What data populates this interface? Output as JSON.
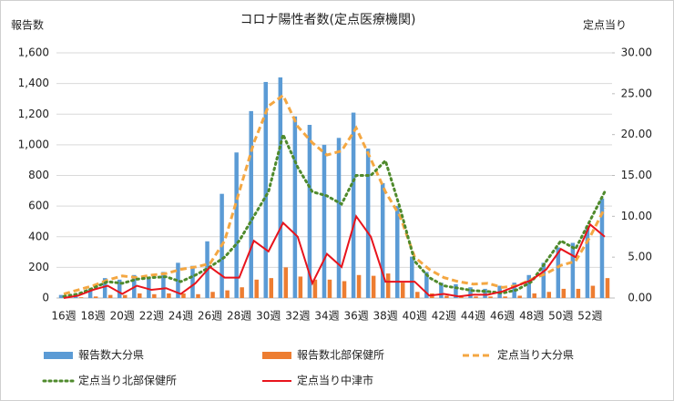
{
  "chart_data": {
    "type": "bar",
    "title": "コロナ陽性者数(定点医療機関)",
    "y_label": "報告数",
    "y2_label": "定点当り",
    "categories": [
      "16週",
      null,
      "18週",
      null,
      "20週",
      null,
      "22週",
      null,
      "24週",
      null,
      "26週",
      null,
      "28週",
      null,
      "30週",
      null,
      "32週",
      null,
      "34週",
      null,
      "36週",
      null,
      "38週",
      null,
      "40週",
      null,
      "42週",
      null,
      "44週",
      null,
      "46週",
      null,
      "48週",
      null,
      "50週",
      null,
      "52週",
      null
    ],
    "ylim": [
      0,
      1600
    ],
    "yticks": [
      0,
      {
        "value": 200,
        "label": "200"
      },
      400,
      600,
      800,
      {
        "value": 1000,
        "label": "1,000"
      },
      {
        "value": 1200,
        "label": "1,200"
      },
      {
        "value": 1400,
        "label": "1,400"
      },
      {
        "value": 1600,
        "label": "1,600"
      }
    ],
    "y2lim": [
      0,
      30
    ],
    "y2ticks": [
      {
        "value": 0,
        "label": "0.00"
      },
      {
        "value": 5,
        "label": "5.00"
      },
      {
        "value": 10,
        "label": "10.00"
      },
      {
        "value": 15,
        "label": "15.00"
      },
      {
        "value": 20,
        "label": "20.00"
      },
      {
        "value": 25,
        "label": "25.00"
      },
      {
        "value": 30,
        "label": "30.00"
      }
    ],
    "grid": true,
    "legend": "bottom",
    "series": [
      {
        "name": "報告数大分県",
        "type": "bar",
        "color": "#5b9bd5",
        "values": [
          20,
          30,
          60,
          130,
          120,
          150,
          130,
          170,
          230,
          210,
          370,
          680,
          950,
          1220,
          1410,
          1440,
          1185,
          1130,
          1000,
          1045,
          1210,
          975,
          750,
          600,
          270,
          170,
          100,
          90,
          70,
          60,
          80,
          100,
          150,
          230,
          330,
          360,
          470,
          650
        ]
      },
      {
        "name": "報告数北部保健所",
        "type": "bar",
        "color": "#ed7d31",
        "values": [
          5,
          5,
          10,
          20,
          20,
          30,
          25,
          30,
          30,
          25,
          40,
          50,
          70,
          120,
          130,
          200,
          140,
          120,
          120,
          110,
          150,
          145,
          160,
          100,
          40,
          30,
          15,
          15,
          10,
          10,
          10,
          15,
          30,
          40,
          60,
          60,
          80,
          130
        ]
      },
      {
        "name": "定点当り大分県",
        "type": "line",
        "axis": "y2",
        "style": "dashed",
        "color": "#f4a742",
        "values": [
          0.5,
          1.0,
          1.5,
          2.2,
          2.7,
          2.5,
          2.8,
          3.0,
          3.5,
          3.8,
          4.2,
          7.0,
          13,
          19,
          23.5,
          24.8,
          21,
          19,
          17.5,
          18,
          20.8,
          17,
          13,
          10,
          5,
          3.5,
          2.5,
          2,
          1.7,
          1.8,
          1.3,
          1.5,
          2.3,
          3,
          4,
          4.5,
          7.5,
          11
        ]
      },
      {
        "name": "定点当り北部保健所",
        "type": "line",
        "axis": "y2",
        "style": "dotted",
        "color": "#4f8a2c",
        "values": [
          0.2,
          0.5,
          1.2,
          2.0,
          1.8,
          2.3,
          2.5,
          2.6,
          2.0,
          2.8,
          3.8,
          5,
          7,
          10,
          13,
          20,
          16,
          13,
          12.5,
          11.5,
          15,
          15,
          16.8,
          11,
          4.5,
          2.5,
          1.5,
          1.2,
          0.9,
          0.8,
          0.6,
          1.0,
          2.0,
          4.5,
          7,
          6,
          9.5,
          13
        ]
      },
      {
        "name": "定点当り中津市",
        "type": "line",
        "axis": "y2",
        "style": "solid",
        "color": "#e8141c",
        "values": [
          0,
          0.3,
          1,
          1.5,
          0.5,
          1.5,
          1,
          1.2,
          0.5,
          1.8,
          3.8,
          2.5,
          2.5,
          7,
          5.7,
          9.2,
          7.5,
          1.8,
          5.4,
          3.8,
          10,
          7.5,
          2,
          2,
          2,
          0.3,
          0.5,
          0.2,
          0.4,
          0.4,
          0.8,
          1.5,
          2.2,
          3.5,
          6,
          5,
          9,
          7.5
        ]
      }
    ]
  }
}
